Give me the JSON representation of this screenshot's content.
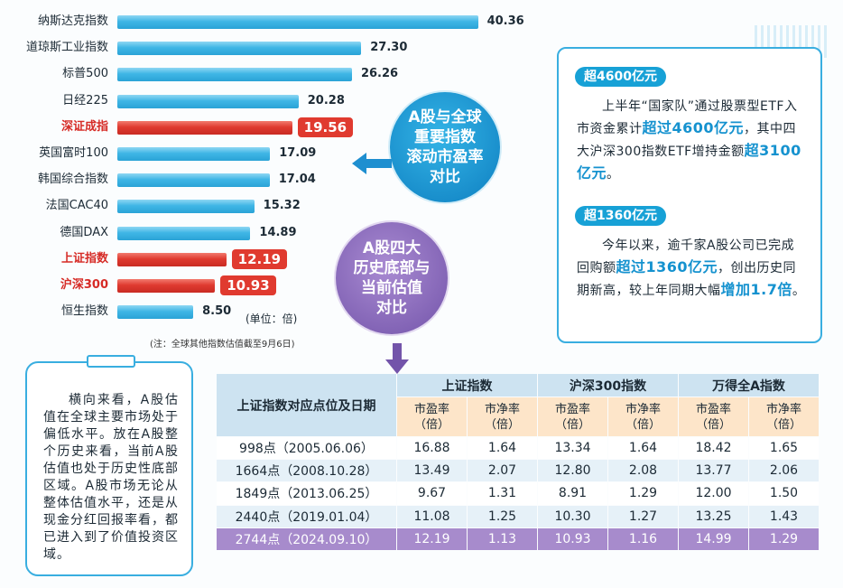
{
  "chart_data": {
    "type": "bar",
    "title": "A股与全球重要指数滚动市盈率对比",
    "categories": [
      "纳斯达克指数",
      "道琼斯工业指数",
      "标普500",
      "日经225",
      "深证成指",
      "英国富时100",
      "韩国综合指数",
      "法国CAC40",
      "德国DAX",
      "上证指数",
      "沪深300",
      "恒生指数"
    ],
    "values": [
      40.36,
      27.3,
      26.26,
      20.28,
      19.56,
      17.09,
      17.04,
      15.32,
      14.89,
      12.19,
      10.93,
      8.5
    ],
    "value_labels": [
      "40.36",
      "27.30",
      "26.26",
      "20.28",
      "19.56",
      "17.09",
      "17.04",
      "15.32",
      "14.89",
      "12.19",
      "10.93",
      "8.50"
    ],
    "highlighted": [
      "深证成指",
      "上证指数",
      "沪深300"
    ],
    "colors": {
      "normal": "#3fb6e6",
      "highlight": "#df3a30"
    },
    "unit": "(单位：倍)",
    "footnote": "(注：全球其他指数估值截至9月6日)"
  },
  "bubbles": {
    "global_title": [
      "A股与全球",
      "重要指数",
      "滚动市盈率",
      "对比"
    ],
    "history_title": [
      "A股四大",
      "历史底部与",
      "当前估值",
      "对比"
    ]
  },
  "info": {
    "pill1": "超4600亿元",
    "para1": [
      {
        "t": "上半年“国家队”通过股票型ETF入市资金累计"
      },
      {
        "t": "超过4600亿元",
        "em": true
      },
      {
        "t": "，其中四大沪深300指数ETF增持金额"
      },
      {
        "t": "超3100亿元",
        "em": true
      },
      {
        "t": "。"
      }
    ],
    "pill2": "超1360亿元",
    "para2": [
      {
        "t": "今年以来，逾千家A股公司已完成回购额"
      },
      {
        "t": "超过1360亿元",
        "em": true
      },
      {
        "t": "，创出历史同期新高，较上年同期大幅"
      },
      {
        "t": "增加1.7倍",
        "em": true
      },
      {
        "t": "。"
      }
    ]
  },
  "note": "横向来看，A股估值在全球主要市场处于偏低水平。放在A股整个历史来看，当前A股估值也处于历史性底部区域。A股市场无论从整体估值水平，还是从现金分红回报率看，都已进入到了价值投资区域。",
  "table": {
    "row_header": "上证指数对应点位及日期",
    "groups": [
      "上证指数",
      "沪深300指数",
      "万得全A指数"
    ],
    "sub_headers": [
      "市盈率\n（倍）",
      "市净率\n（倍）"
    ],
    "rows": [
      {
        "label": "998点（2005.06.06）",
        "values": [
          "16.88",
          "1.64",
          "13.34",
          "1.64",
          "18.42",
          "1.65"
        ]
      },
      {
        "label": "1664点（2008.10.28）",
        "values": [
          "13.49",
          "2.07",
          "12.80",
          "2.08",
          "13.77",
          "2.06"
        ]
      },
      {
        "label": "1849点（2013.06.25）",
        "values": [
          "9.67",
          "1.31",
          "8.91",
          "1.29",
          "12.00",
          "1.50"
        ]
      },
      {
        "label": "2440点（2019.01.04）",
        "values": [
          "11.08",
          "1.25",
          "10.30",
          "1.27",
          "13.25",
          "1.43"
        ]
      },
      {
        "label": "2744点（2024.09.10）",
        "values": [
          "12.19",
          "1.13",
          "10.93",
          "1.16",
          "14.99",
          "1.29"
        ]
      }
    ]
  }
}
